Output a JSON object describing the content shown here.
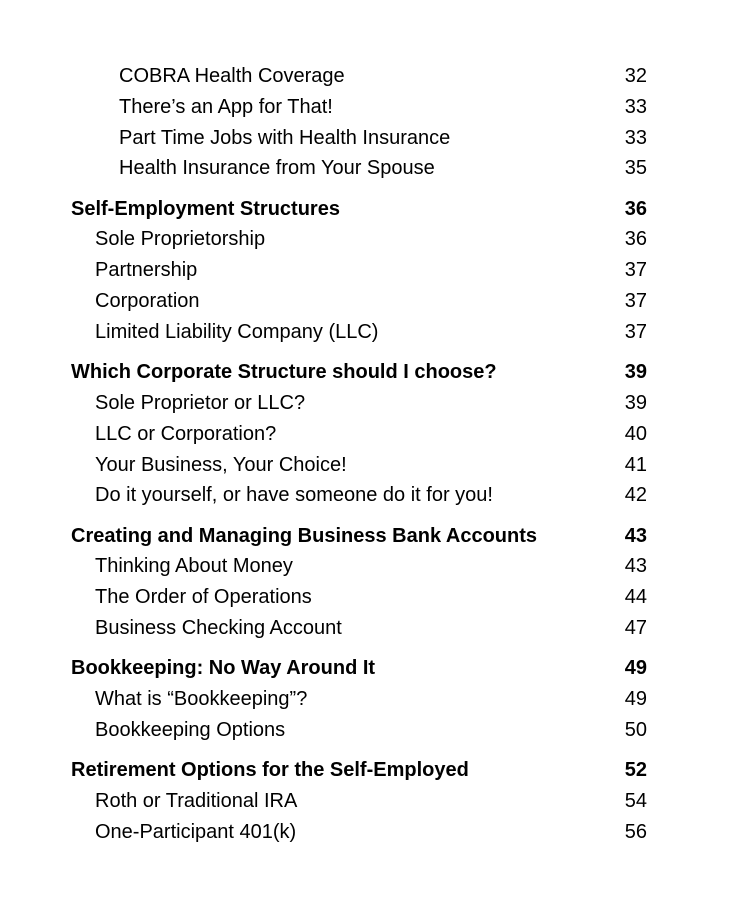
{
  "toc": [
    {
      "level": 3,
      "title": "COBRA Health Coverage",
      "page": "32"
    },
    {
      "level": 3,
      "title": "There’s an App for That!",
      "page": "33"
    },
    {
      "level": 3,
      "title": "Part Time Jobs with Health Insurance",
      "page": "33"
    },
    {
      "level": 3,
      "title": "Health Insurance from Your Spouse",
      "page": "35"
    },
    {
      "level": 1,
      "title": "Self-Employment Structures",
      "page": "36"
    },
    {
      "level": 2,
      "title": "Sole Proprietorship",
      "page": "36"
    },
    {
      "level": 2,
      "title": "Partnership",
      "page": "37"
    },
    {
      "level": 2,
      "title": "Corporation",
      "page": "37"
    },
    {
      "level": 2,
      "title": "Limited Liability Company (LLC)",
      "page": "37"
    },
    {
      "level": 1,
      "title": "Which Corporate Structure should I choose?",
      "page": "39"
    },
    {
      "level": 2,
      "title": "Sole Proprietor or LLC?",
      "page": "39"
    },
    {
      "level": 2,
      "title": "LLC or Corporation?",
      "page": "40"
    },
    {
      "level": 2,
      "title": "Your Business, Your Choice!",
      "page": "41"
    },
    {
      "level": 2,
      "title": "Do it yourself, or have someone do it for you!",
      "page": "42"
    },
    {
      "level": 1,
      "title": "Creating and Managing Business Bank Accounts",
      "page": "43"
    },
    {
      "level": 2,
      "title": "Thinking About Money",
      "page": "43"
    },
    {
      "level": 2,
      "title": "The Order of Operations",
      "page": "44"
    },
    {
      "level": 2,
      "title": "Business Checking Account",
      "page": "47"
    },
    {
      "level": 1,
      "title": "Bookkeeping: No Way Around It",
      "page": "49"
    },
    {
      "level": 2,
      "title": "What is “Bookkeeping”?",
      "page": "49"
    },
    {
      "level": 2,
      "title": "Bookkeeping Options",
      "page": "50"
    },
    {
      "level": 1,
      "title": "Retirement Options for the Self-Employed",
      "page": "52"
    },
    {
      "level": 2,
      "title": "Roth or Traditional IRA",
      "page": "54"
    },
    {
      "level": 2,
      "title": "One-Participant 401(k)",
      "page": "56"
    }
  ]
}
